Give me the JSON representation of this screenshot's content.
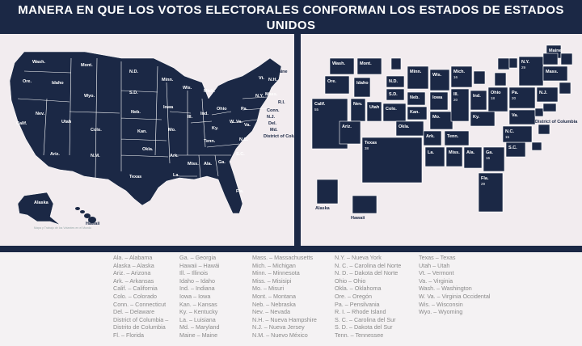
{
  "title": "MANERA EN QUE LOS VOTOS ELECTORALES CONFORMAN LOS ESTADOS DE ESTADOS UNIDOS",
  "colors": {
    "navy": "#1b2845",
    "background": "#f2ecef",
    "legend_text": "#8a8a8a"
  },
  "left_map": {
    "credit": "Mapa y Trabajo de los Votantes en el Mundo",
    "labels": [
      "Wash.",
      "Ore.",
      "Calif.",
      "Nev.",
      "Idaho",
      "Mont.",
      "Wyo.",
      "Utah",
      "Ariz.",
      "Colo.",
      "N.M.",
      "N.D.",
      "S.D.",
      "Neb.",
      "Kan.",
      "Okla.",
      "Texas",
      "Minn.",
      "Iowa",
      "Mo.",
      "Ark.",
      "La.",
      "Wis.",
      "Ill.",
      "Mich.",
      "Ind.",
      "Ohio",
      "Ky.",
      "Tenn.",
      "Miss.",
      "Ala.",
      "Ga.",
      "Fla.",
      "S.C.",
      "N.C.",
      "Va.",
      "W. Va.",
      "Pa.",
      "N.Y.",
      "Vt.",
      "N.H.",
      "Maine",
      "Mass.",
      "R.I.",
      "Conn.",
      "N.J.",
      "Del.",
      "Md.",
      "District of Columbia",
      "Alaska",
      "Hawaii"
    ]
  },
  "right_map": {
    "labels": [
      "Wash.",
      "Ore.",
      "Calif.",
      "Nev.",
      "Idaho",
      "Mont.",
      "Utah",
      "Ariz.",
      "Colo.",
      "N.D.",
      "S.D.",
      "Neb.",
      "Kan.",
      "Okla.",
      "Texas",
      "Minn.",
      "Iowa",
      "Mo.",
      "Ark.",
      "La.",
      "Wis.",
      "Ill.",
      "Mich.",
      "Ind.",
      "Ohio",
      "Ky.",
      "Tenn.",
      "Miss.",
      "Ala.",
      "Ga.",
      "Fla.",
      "S.C.",
      "N.C.",
      "Va.",
      "Pa.",
      "N.Y.",
      "Maine",
      "Mass.",
      "N.J.",
      "District of Columbia",
      "Alaska",
      "Hawaii"
    ],
    "votes": {
      "Calif.": "55",
      "Texas": "38",
      "Fla.": "29",
      "N.Y.": "29",
      "Ill.": "20",
      "Pa.": "20",
      "Ohio": "18",
      "Ga.": "16",
      "Mich.": "16",
      "N.C.": "15"
    }
  },
  "legend": [
    [
      "Ala. – Alabama",
      "Alaska – Alaska",
      "Ariz. – Arizona",
      "Ark. – Arkansas",
      "Calif. – California",
      "Colo. – Colorado",
      "Conn. – Connecticut",
      "Del. – Delaware",
      "District of Columbia –",
      "    Distrito de Columbia",
      "Fl. – Florida"
    ],
    [
      "Ga. – Georgia",
      "Hawaii – Hawái",
      "Ill. – Illinois",
      "Idaho – Idaho",
      "Ind. – Indiana",
      "Iowa – Iowa",
      "Kan. – Kansas",
      "Ky. – Kentucky",
      "La. – Luisiana",
      "Md. – Maryland",
      "Maine – Maine"
    ],
    [
      "Mass. – Massachusetts",
      "Mich. – Michigan",
      "Minn. – Minnesota",
      "Miss. – Misisipi",
      "Mo. – Misuri",
      "Mont. – Montana",
      "Neb. – Nebraska",
      "Nev. – Nevada",
      "N.H. – Nueva Hampshire",
      "N.J. – Nueva Jersey",
      "N.M. – Nuevo México"
    ],
    [
      "N.Y. – Nueva York",
      "N. C. – Carolina del Norte",
      "N. D. – Dakota del Norte",
      "Ohio – Ohio",
      "Okla. – Oklahoma",
      "Ore. – Oregón",
      "Pa. – Pensilvania",
      "R. I. – Rhode Island",
      "S. C. – Carolina del Sur",
      "S. D. – Dakota del Sur",
      "Tenn. – Tennessee"
    ],
    [
      "Texas – Texas",
      "Utah – Utah",
      "Vt. – Vermont",
      "Va. – Virginia",
      "Wash. – Washington",
      "W. Va. – Virginia Occidental",
      "Wis. – Wisconsin",
      "Wyo. – Wyoming"
    ]
  ]
}
